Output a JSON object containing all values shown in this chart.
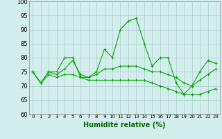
{
  "title": "",
  "xlabel": "Humidité relative (%)",
  "ylabel": "",
  "bg_color": "#d4eeee",
  "grid_color": "#aacccc",
  "line_color": "#00aa00",
  "ylim": [
    60,
    100
  ],
  "xlim": [
    -0.5,
    23.5
  ],
  "yticks": [
    60,
    65,
    70,
    75,
    80,
    85,
    90,
    95,
    100
  ],
  "xticks": [
    0,
    1,
    2,
    3,
    4,
    5,
    6,
    7,
    8,
    9,
    10,
    11,
    12,
    13,
    14,
    15,
    16,
    17,
    18,
    19,
    20,
    21,
    22,
    23
  ],
  "series": [
    [
      75,
      71,
      75,
      75,
      80,
      80,
      73,
      73,
      75,
      83,
      80,
      90,
      93,
      94,
      85,
      77,
      80,
      80,
      71,
      67,
      70,
      75,
      79,
      78
    ],
    [
      75,
      71,
      75,
      74,
      76,
      79,
      74,
      73,
      74,
      76,
      76,
      77,
      77,
      77,
      76,
      75,
      75,
      74,
      73,
      71,
      70,
      72,
      74,
      76
    ],
    [
      75,
      71,
      74,
      73,
      74,
      74,
      73,
      72,
      72,
      72,
      72,
      72,
      72,
      72,
      72,
      71,
      70,
      69,
      68,
      67,
      67,
      67,
      68,
      69
    ]
  ],
  "xlabel_fontsize": 7,
  "xlabel_color": "#006600",
  "tick_fontsize": 5,
  "ytick_fontsize": 6
}
